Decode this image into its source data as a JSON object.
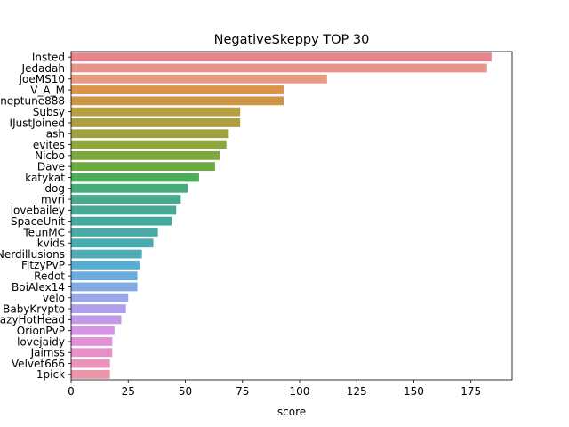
{
  "chart_data": {
    "type": "bar",
    "orientation": "horizontal",
    "title": "NegativeSkeppy TOP 30",
    "xlabel": "score",
    "ylabel": "",
    "xlim": [
      0,
      193
    ],
    "xticks": [
      0,
      25,
      50,
      75,
      100,
      125,
      150,
      175
    ],
    "grid": false,
    "categories": [
      "Insted",
      "Jedadah",
      "JoeMS10",
      "V_A_M",
      "neptune888",
      "Subsy",
      "IJustJoined",
      "ash",
      "evites",
      "Nicbo",
      "Dave",
      "katykat",
      "dog",
      "mvri",
      "lovebailey",
      "SpaceUnit",
      "TeunMC",
      "kvids",
      "Nerdillusions",
      "FitzyPvP",
      "Redot",
      "BoiAlex14",
      "velo",
      "BabyKrypto",
      "CrazyHotHead",
      "OrionPvP",
      "lovejaidy",
      "Jaimss",
      "Velvet666",
      "1pick"
    ],
    "values": [
      184,
      182,
      112,
      93,
      93,
      74,
      74,
      69,
      68,
      65,
      63,
      56,
      51,
      48,
      46,
      44,
      38,
      36,
      31,
      30,
      29,
      29,
      25,
      24,
      22,
      19,
      18,
      18,
      17,
      17
    ],
    "colors": [
      "#e8858c",
      "#e89488",
      "#e89a80",
      "#d99448",
      "#d09448",
      "#b5a03e",
      "#ae9e3e",
      "#9ea23e",
      "#8fa53d",
      "#7ea83d",
      "#6caa44",
      "#4fac5b",
      "#44ab7a",
      "#45aa8a",
      "#46a996",
      "#47a89f",
      "#4aa9a6",
      "#4aabae",
      "#4eacb6",
      "#57acd1",
      "#6aabdf",
      "#82a9e6",
      "#9aa6ea",
      "#ad9feb",
      "#c09be9",
      "#d493e3",
      "#e28fd8",
      "#e790c8",
      "#e893ba",
      "#e896a8"
    ]
  }
}
